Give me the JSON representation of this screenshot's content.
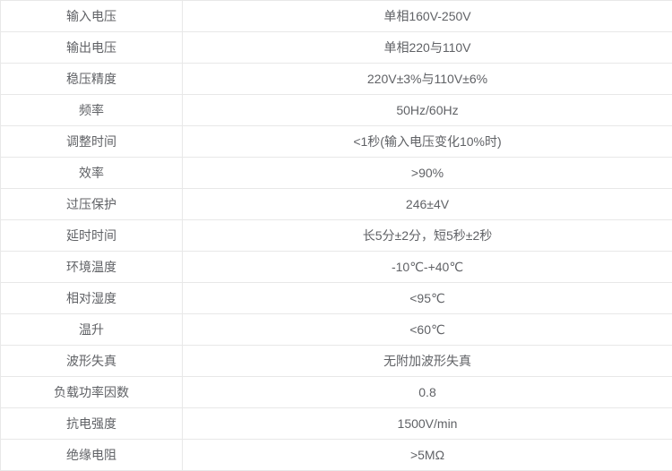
{
  "colors": {
    "text": "#606266",
    "border": "#e8e8e8",
    "background": "#ffffff"
  },
  "table": {
    "description": "voltage-regulator-specifications",
    "columns": [
      "spec-name",
      "spec-value"
    ],
    "rows": [
      {
        "label": "输入电压",
        "value": "单相160V-250V"
      },
      {
        "label": "输出电压",
        "value": "单相220与110V"
      },
      {
        "label": "稳压精度",
        "value": "220V±3%与110V±6%"
      },
      {
        "label": "频率",
        "value": "50Hz/60Hz"
      },
      {
        "label": "调整时间",
        "value": "<1秒(输入电压变化10%时)"
      },
      {
        "label": "效率",
        "value": ">90%"
      },
      {
        "label": "过压保护",
        "value": "246±4V"
      },
      {
        "label": "延时时间",
        "value": "长5分±2分，短5秒±2秒"
      },
      {
        "label": "环境温度",
        "value": "-10℃-+40℃"
      },
      {
        "label": "相对湿度",
        "value": "<95℃"
      },
      {
        "label": "温升",
        "value": "<60℃"
      },
      {
        "label": "波形失真",
        "value": "无附加波形失真"
      },
      {
        "label": "负载功率因数",
        "value": "0.8"
      },
      {
        "label": "抗电强度",
        "value": "1500V/min"
      },
      {
        "label": "绝缘电阻",
        "value": ">5MΩ"
      }
    ]
  }
}
